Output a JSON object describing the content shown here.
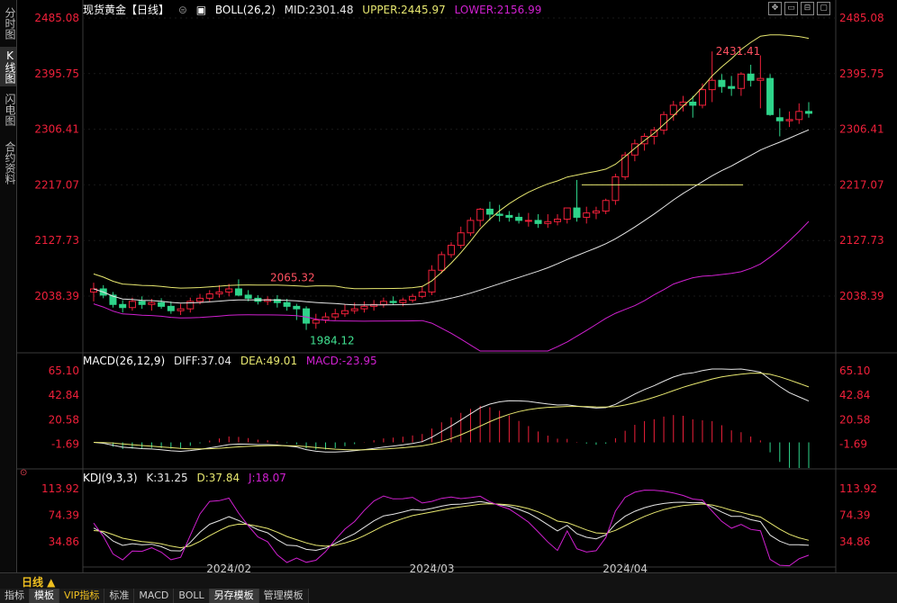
{
  "sidebar": {
    "tabs": [
      {
        "label": "分时图"
      },
      {
        "label": "K线图"
      },
      {
        "label": "闪电图"
      },
      {
        "label": "合约资料"
      }
    ]
  },
  "main": {
    "title": "现货黄金【日线】",
    "indicator_name": "BOLL(26,2)",
    "mid": "MID:2301.48",
    "upper": "UPPER:2445.97",
    "lower": "LOWER:2156.99",
    "high_marker": "2431.41",
    "low_marker": "1984.12",
    "left_marker": "2065.32",
    "y_labels": [
      "2485.08",
      "2395.75",
      "2306.41",
      "2217.07",
      "2127.73",
      "2038.39"
    ]
  },
  "macd": {
    "name": "MACD(26,12,9)",
    "diff": "DIFF:37.04",
    "dea": "DEA:49.01",
    "macd": "MACD:-23.95",
    "y_labels": [
      "65.10",
      "42.84",
      "20.58",
      "-1.69"
    ]
  },
  "kdj": {
    "name": "KDJ(9,3,3)",
    "k": "K:31.25",
    "d": "D:37.84",
    "j": "J:18.07",
    "y_labels": [
      "113.92",
      "74.39",
      "34.86"
    ]
  },
  "x_labels": [
    "2024/02",
    "2024/03",
    "2024/04"
  ],
  "bottom": {
    "period": "日线 ▲",
    "tabs": [
      "指标",
      "模板",
      "VIP指标",
      "标准",
      "MACD",
      "BOLL",
      "另存模板",
      "管理模板"
    ]
  },
  "colors": {
    "up": "#f0203a",
    "down": "#2ed48a",
    "yellow": "#e8e870",
    "white": "#e6e6e6",
    "magenta": "#d020d0",
    "axis_text": "#f0203a"
  },
  "chart_data": {
    "type": "candlestick",
    "x": [
      "2024-01-12",
      "2024-01-15",
      "2024-01-16",
      "2024-01-17",
      "2024-01-18",
      "2024-01-19",
      "2024-01-22",
      "2024-01-23",
      "2024-01-24",
      "2024-01-25",
      "2024-01-26",
      "2024-01-29",
      "2024-01-30",
      "2024-01-31",
      "2024-02-01",
      "2024-02-02",
      "2024-02-05",
      "2024-02-06",
      "2024-02-07",
      "2024-02-08",
      "2024-02-09",
      "2024-02-12",
      "2024-02-13",
      "2024-02-14",
      "2024-02-15",
      "2024-02-16",
      "2024-02-19",
      "2024-02-20",
      "2024-02-21",
      "2024-02-22",
      "2024-02-23",
      "2024-02-26",
      "2024-02-27",
      "2024-02-28",
      "2024-02-29",
      "2024-03-01",
      "2024-03-04",
      "2024-03-05",
      "2024-03-06",
      "2024-03-07",
      "2024-03-08",
      "2024-03-11",
      "2024-03-12",
      "2024-03-13",
      "2024-03-14",
      "2024-03-15",
      "2024-03-18",
      "2024-03-19",
      "2024-03-20",
      "2024-03-21",
      "2024-03-22",
      "2024-03-25",
      "2024-03-26",
      "2024-03-27",
      "2024-03-28",
      "2024-04-01",
      "2024-04-02",
      "2024-04-03",
      "2024-04-04",
      "2024-04-05",
      "2024-04-08",
      "2024-04-09",
      "2024-04-10",
      "2024-04-11",
      "2024-04-12",
      "2024-04-15",
      "2024-04-16",
      "2024-04-17",
      "2024-04-18",
      "2024-04-19",
      "2024-04-22",
      "2024-04-23",
      "2024-04-24",
      "2024-04-25",
      "2024-04-26"
    ],
    "open": [
      2045,
      2050,
      2040,
      2025,
      2020,
      2030,
      2025,
      2028,
      2022,
      2015,
      2018,
      2030,
      2035,
      2042,
      2045,
      2050,
      2040,
      2035,
      2030,
      2033,
      2028,
      2022,
      2018,
      1995,
      2000,
      2005,
      2010,
      2015,
      2018,
      2022,
      2025,
      2030,
      2028,
      2032,
      2038,
      2045,
      2080,
      2105,
      2120,
      2140,
      2160,
      2178,
      2170,
      2168,
      2165,
      2160,
      2160,
      2155,
      2158,
      2162,
      2180,
      2165,
      2172,
      2175,
      2192,
      2230,
      2265,
      2283,
      2295,
      2305,
      2330,
      2345,
      2350,
      2345,
      2370,
      2385,
      2375,
      2372,
      2395,
      2385,
      2388,
      2325,
      2320,
      2322,
      2335
    ],
    "high": [
      2060,
      2056,
      2045,
      2032,
      2036,
      2038,
      2034,
      2035,
      2030,
      2026,
      2036,
      2042,
      2048,
      2056,
      2058,
      2065.32,
      2048,
      2040,
      2038,
      2040,
      2034,
      2026,
      2022,
      2010,
      2012,
      2018,
      2025,
      2028,
      2030,
      2032,
      2036,
      2038,
      2036,
      2042,
      2055,
      2088,
      2110,
      2125,
      2150,
      2165,
      2180,
      2190,
      2185,
      2175,
      2172,
      2172,
      2170,
      2170,
      2170,
      2180,
      2225,
      2182,
      2182,
      2195,
      2235,
      2270,
      2290,
      2300,
      2310,
      2335,
      2352,
      2360,
      2360,
      2380,
      2431.41,
      2395,
      2392,
      2398,
      2410,
      2425,
      2395,
      2340,
      2335,
      2348,
      2350
    ],
    "low": [
      2030,
      2035,
      2020,
      2012,
      2015,
      2018,
      2015,
      2018,
      2010,
      2008,
      2012,
      2025,
      2030,
      2036,
      2038,
      2038,
      2030,
      2025,
      2024,
      2020,
      2015,
      2000,
      1984.12,
      1986,
      1995,
      2000,
      2005,
      2010,
      2012,
      2015,
      2020,
      2024,
      2022,
      2028,
      2035,
      2040,
      2075,
      2100,
      2115,
      2135,
      2150,
      2160,
      2158,
      2158,
      2155,
      2150,
      2148,
      2148,
      2152,
      2155,
      2158,
      2155,
      2162,
      2170,
      2185,
      2225,
      2255,
      2272,
      2282,
      2298,
      2320,
      2335,
      2325,
      2340,
      2350,
      2365,
      2360,
      2360,
      2375,
      2340,
      2328,
      2295,
      2310,
      2315,
      2325
    ],
    "close": [
      2050,
      2040,
      2025,
      2020,
      2030,
      2025,
      2028,
      2022,
      2015,
      2018,
      2030,
      2035,
      2042,
      2045,
      2050,
      2040,
      2035,
      2030,
      2033,
      2028,
      2022,
      2018,
      1995,
      2000,
      2005,
      2010,
      2015,
      2018,
      2022,
      2025,
      2030,
      2028,
      2032,
      2038,
      2045,
      2080,
      2105,
      2120,
      2140,
      2160,
      2178,
      2170,
      2168,
      2165,
      2160,
      2160,
      2155,
      2158,
      2162,
      2180,
      2165,
      2172,
      2175,
      2192,
      2230,
      2265,
      2283,
      2295,
      2305,
      2330,
      2345,
      2350,
      2345,
      2370,
      2385,
      2375,
      2372,
      2395,
      2385,
      2388,
      2330,
      2320,
      2322,
      2335,
      2332
    ],
    "ylim": [
      2000,
      2485.08
    ]
  }
}
